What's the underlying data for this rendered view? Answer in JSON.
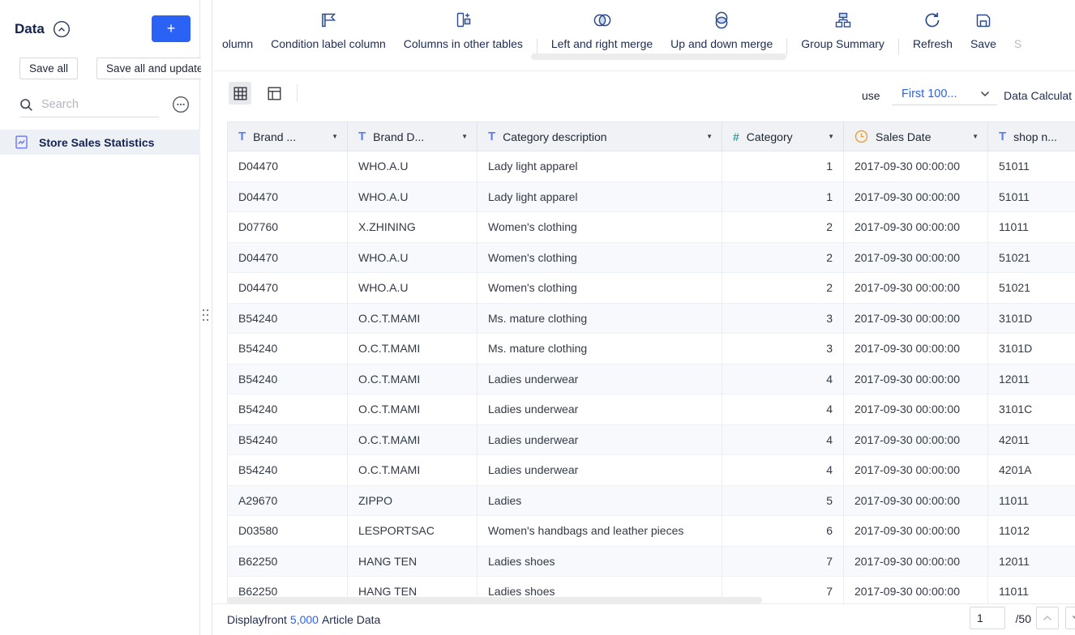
{
  "sidebar": {
    "title": "Data",
    "add_button_label": "+",
    "save_all_label": "Save all",
    "save_all_update_label": "Save all and update",
    "search_placeholder": "Search",
    "items": [
      {
        "label": "Store Sales Statistics",
        "icon": "chart-document-icon",
        "selected": true
      }
    ]
  },
  "toolbar": {
    "items": [
      {
        "label": "olumn",
        "icon": "",
        "truncated": true,
        "sep_before": false,
        "disabled": false
      },
      {
        "label": "Condition label column",
        "icon": "flag-icon",
        "sep_before": false,
        "disabled": false
      },
      {
        "label": "Columns in other tables",
        "icon": "column-plus-icon",
        "sep_before": false,
        "disabled": false
      },
      {
        "label": "Left and right merge",
        "icon": "venn-horizontal-icon",
        "sep_before": true,
        "disabled": false
      },
      {
        "label": "Up and down merge",
        "icon": "venn-vertical-icon",
        "sep_before": false,
        "disabled": false
      },
      {
        "label": "Group Summary",
        "icon": "group-summary-icon",
        "sep_before": true,
        "disabled": false
      },
      {
        "label": "Refresh",
        "icon": "refresh-icon",
        "sep_before": true,
        "disabled": false
      },
      {
        "label": "Save",
        "icon": "save-icon",
        "sep_before": false,
        "disabled": false
      },
      {
        "label": "S",
        "icon": "",
        "sep_before": false,
        "disabled": true
      }
    ]
  },
  "view_bar": {
    "use_label": "use",
    "row_limit_value": "First 100...",
    "data_calculation_label": "Data Calculat"
  },
  "table": {
    "columns": [
      {
        "label": "Brand ...",
        "type": "text"
      },
      {
        "label": "Brand D...",
        "type": "text"
      },
      {
        "label": "Category description",
        "type": "text"
      },
      {
        "label": "Category",
        "type": "number"
      },
      {
        "label": "Sales Date",
        "type": "date"
      },
      {
        "label": "shop n...",
        "type": "text"
      }
    ],
    "rows": [
      [
        "D04470",
        "WHO.A.U",
        "Lady light apparel",
        "1",
        "2017-09-30 00:00:00",
        "51011"
      ],
      [
        "D04470",
        "WHO.A.U",
        "Lady light apparel",
        "1",
        "2017-09-30 00:00:00",
        "51011"
      ],
      [
        "D07760",
        "X.ZHINING",
        "Women's clothing",
        "2",
        "2017-09-30 00:00:00",
        "11011"
      ],
      [
        "D04470",
        "WHO.A.U",
        "Women's clothing",
        "2",
        "2017-09-30 00:00:00",
        "51021"
      ],
      [
        "D04470",
        "WHO.A.U",
        "Women's clothing",
        "2",
        "2017-09-30 00:00:00",
        "51021"
      ],
      [
        "B54240",
        "O.C.T.MAMI",
        "Ms. mature clothing",
        "3",
        "2017-09-30 00:00:00",
        "3101D"
      ],
      [
        "B54240",
        "O.C.T.MAMI",
        "Ms. mature clothing",
        "3",
        "2017-09-30 00:00:00",
        "3101D"
      ],
      [
        "B54240",
        "O.C.T.MAMI",
        "Ladies underwear",
        "4",
        "2017-09-30 00:00:00",
        "12011"
      ],
      [
        "B54240",
        "O.C.T.MAMI",
        "Ladies underwear",
        "4",
        "2017-09-30 00:00:00",
        "3101C"
      ],
      [
        "B54240",
        "O.C.T.MAMI",
        "Ladies underwear",
        "4",
        "2017-09-30 00:00:00",
        "42011"
      ],
      [
        "B54240",
        "O.C.T.MAMI",
        "Ladies underwear",
        "4",
        "2017-09-30 00:00:00",
        "4201A"
      ],
      [
        "A29670",
        "ZIPPO",
        "Ladies",
        "5",
        "2017-09-30 00:00:00",
        "11011"
      ],
      [
        "D03580",
        "LESPORTSAC",
        "Women's handbags and leather pieces",
        "6",
        "2017-09-30 00:00:00",
        "11012"
      ],
      [
        "B62250",
        "HANG TEN",
        "Ladies shoes",
        "7",
        "2017-09-30 00:00:00",
        "12011"
      ],
      [
        "B62250",
        "HANG TEN",
        "Ladies shoes",
        "7",
        "2017-09-30 00:00:00",
        "11011"
      ]
    ]
  },
  "status_bar": {
    "display_prefix": "Displayfront",
    "display_count": "5,000",
    "display_suffix": "Article Data",
    "page_input_value": "1",
    "page_total_label": "/50"
  },
  "colors": {
    "accent_blue": "#2962f5",
    "toolbar_icon_navy": "#2d4a8a",
    "toolbar_icon_fill": "#c9dcf5",
    "text_type_icon_blue": "#5b7cf0",
    "number_type_icon_teal": "#2aa6a0",
    "date_type_icon_orange": "#efa33c",
    "header_bg": "#f0f2f5",
    "row_alt_bg": "#f7f9fc",
    "selected_item_bg": "#edf0f5"
  }
}
